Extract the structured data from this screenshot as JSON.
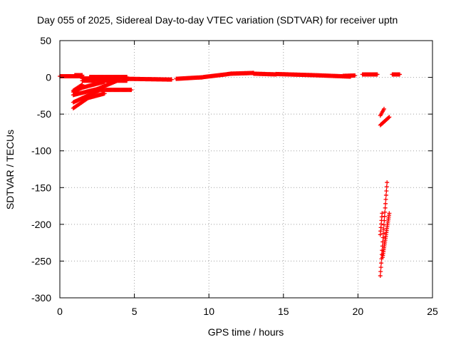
{
  "chart_data": {
    "type": "scatter",
    "title": "Day 055 of 2025, Sidereal Day-to-day VTEC variation (SDTVAR) for receiver uptn",
    "xlabel": "GPS time / hours",
    "ylabel": "SDTVAR / TECUs",
    "xlim": [
      0,
      25
    ],
    "ylim": [
      -300,
      50
    ],
    "xticks": [
      0,
      5,
      10,
      15,
      20,
      25
    ],
    "yticks": [
      50,
      0,
      -50,
      -100,
      -150,
      -200,
      -250,
      -300
    ],
    "grid": true,
    "marker": "+",
    "color": "#ff0000",
    "series": [
      {
        "name": "SDTVAR",
        "segments": [
          {
            "from": [
              0.0,
              1.5
            ],
            "to": [
              1.5,
              1.5
            ],
            "step": 0.05
          },
          {
            "from": [
              1.0,
              3.0
            ],
            "to": [
              1.5,
              3.0
            ],
            "step": 0.05
          },
          {
            "from": [
              1.5,
              -1.5
            ],
            "to": [
              4.0,
              -1.5
            ],
            "step": 0.05
          },
          {
            "from": [
              1.5,
              -4.5
            ],
            "to": [
              4.5,
              -4.5
            ],
            "step": 0.05
          },
          {
            "from": [
              2.0,
              0.5
            ],
            "to": [
              4.5,
              0.5
            ],
            "step": 0.05
          },
          {
            "from": [
              4.5,
              -2.0
            ],
            "to": [
              7.5,
              -3.0
            ],
            "step": 0.05
          },
          {
            "from": [
              7.8,
              -2.0
            ],
            "to": [
              9.5,
              0.0
            ],
            "step": 0.05
          },
          {
            "from": [
              9.5,
              0.0
            ],
            "to": [
              11.5,
              5.0
            ],
            "step": 0.05
          },
          {
            "from": [
              11.5,
              5.0
            ],
            "to": [
              13.0,
              6.0
            ],
            "step": 0.05
          },
          {
            "from": [
              13.0,
              5.0
            ],
            "to": [
              14.5,
              4.0
            ],
            "step": 0.05
          },
          {
            "from": [
              14.5,
              4.5
            ],
            "to": [
              17.0,
              3.0
            ],
            "step": 0.05
          },
          {
            "from": [
              17.0,
              3.0
            ],
            "to": [
              19.5,
              1.0
            ],
            "step": 0.05
          },
          {
            "from": [
              19.0,
              2.0
            ],
            "to": [
              19.8,
              2.5
            ],
            "step": 0.05
          },
          {
            "from": [
              20.3,
              4.0
            ],
            "to": [
              21.3,
              4.0
            ],
            "step": 0.05
          },
          {
            "from": [
              22.3,
              4.0
            ],
            "to": [
              22.8,
              4.0
            ],
            "step": 0.05
          },
          {
            "from": [
              0.9,
              -42.0
            ],
            "to": [
              1.9,
              -28.0
            ],
            "step": 0.05
          },
          {
            "from": [
              1.9,
              -28.0
            ],
            "to": [
              3.0,
              -22.0
            ],
            "step": 0.05
          },
          {
            "from": [
              0.9,
              -34.0
            ],
            "to": [
              2.7,
              -17.0
            ],
            "step": 0.05
          },
          {
            "from": [
              2.7,
              -17.0
            ],
            "to": [
              4.8,
              -17.0
            ],
            "step": 0.05
          },
          {
            "from": [
              0.9,
              -24.0
            ],
            "to": [
              2.5,
              -16.0
            ],
            "step": 0.05
          },
          {
            "from": [
              2.5,
              -16.0
            ],
            "to": [
              3.8,
              -5.0
            ],
            "step": 0.05
          },
          {
            "from": [
              0.9,
              -20.0
            ],
            "to": [
              1.5,
              -14.0
            ],
            "step": 0.05
          },
          {
            "from": [
              1.5,
              -14.0
            ],
            "to": [
              3.0,
              -6.0
            ],
            "step": 0.05
          },
          {
            "from": [
              0.9,
              -18.0
            ],
            "to": [
              1.5,
              -10.0
            ],
            "step": 0.05
          },
          {
            "from": [
              21.5,
              -52.0
            ],
            "to": [
              21.75,
              -43.0
            ],
            "step": 0.05
          },
          {
            "from": [
              21.5,
              -65.0
            ],
            "to": [
              22.1,
              -54.0
            ],
            "step": 0.05
          },
          {
            "from": [
              21.5,
              -270.0
            ],
            "to": [
              21.95,
              -143.0
            ],
            "step": 0.02
          },
          {
            "from": [
              21.5,
              -214.0
            ],
            "to": [
              21.62,
              -185.0
            ],
            "step": 0.02
          },
          {
            "from": [
              21.65,
              -245.0
            ],
            "to": [
              22.1,
              -185.0
            ],
            "step": 0.02
          }
        ]
      }
    ]
  }
}
